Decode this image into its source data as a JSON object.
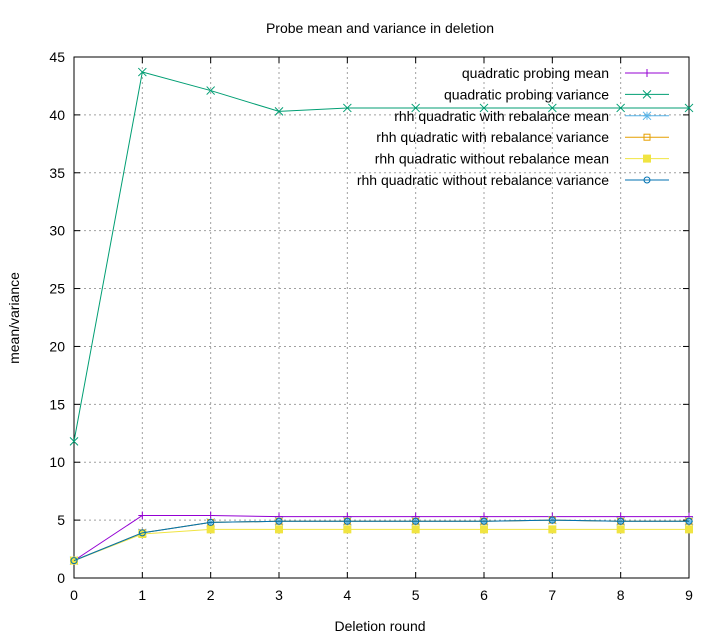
{
  "chart_data": {
    "type": "line",
    "title": "Probe mean and variance in deletion",
    "xlabel": "Deletion round",
    "ylabel": "mean/variance",
    "xlim": [
      0,
      9
    ],
    "ylim": [
      0,
      45
    ],
    "xticks": [
      0,
      1,
      2,
      3,
      4,
      5,
      6,
      7,
      8,
      9
    ],
    "yticks": [
      0,
      5,
      10,
      15,
      20,
      25,
      30,
      35,
      40,
      45
    ],
    "grid": true,
    "legend_position": "top-right",
    "x": [
      0,
      1,
      2,
      3,
      4,
      5,
      6,
      7,
      8,
      9
    ],
    "series": [
      {
        "name": "quadratic probing mean",
        "color": "#9400d3",
        "marker": "plus",
        "values": [
          1.5,
          5.4,
          5.4,
          5.3,
          5.3,
          5.3,
          5.3,
          5.3,
          5.3,
          5.3
        ]
      },
      {
        "name": "quadratic probing variance",
        "color": "#009e73",
        "marker": "cross",
        "values": [
          11.8,
          43.7,
          42.1,
          40.3,
          40.6,
          40.6,
          40.6,
          40.6,
          40.6,
          40.6
        ]
      },
      {
        "name": "rhh quadratic with rebalance mean",
        "color": "#56b4e9",
        "marker": "star",
        "values": [
          1.5,
          3.9,
          4.8,
          4.9,
          4.9,
          4.9,
          4.9,
          5.0,
          4.9,
          4.9
        ]
      },
      {
        "name": "rhh quadratic with rebalance variance",
        "color": "#e69f00",
        "marker": "square-open",
        "values": [
          1.5,
          3.9,
          4.8,
          4.9,
          4.9,
          4.9,
          4.9,
          5.0,
          4.9,
          4.9
        ]
      },
      {
        "name": "rhh quadratic without rebalance mean",
        "color": "#f0e442",
        "marker": "square-filled",
        "values": [
          1.5,
          3.8,
          4.2,
          4.2,
          4.2,
          4.2,
          4.2,
          4.2,
          4.2,
          4.2
        ]
      },
      {
        "name": "rhh quadratic without rebalance variance",
        "color": "#0072b2",
        "marker": "circle-open",
        "values": [
          1.5,
          3.9,
          4.8,
          4.9,
          4.9,
          4.9,
          4.9,
          5.0,
          4.9,
          4.9
        ]
      }
    ]
  }
}
